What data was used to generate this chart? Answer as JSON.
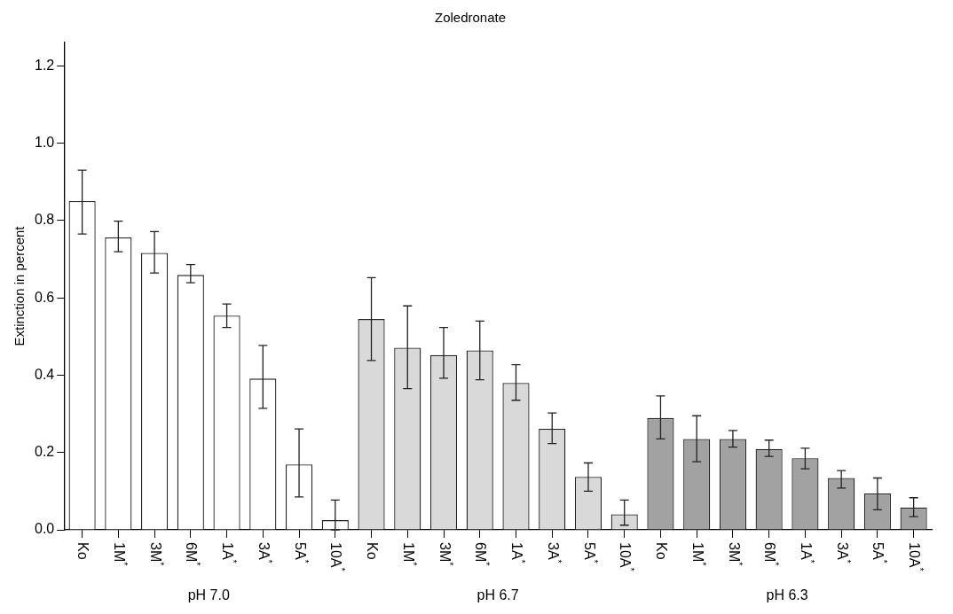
{
  "chart_data": {
    "type": "bar",
    "title": "Zoledronate",
    "ylabel": "Extinction in percent",
    "categories": [
      "Ko",
      "1M$^{*}$",
      "3M$^{*}$",
      "6M$^{*}$",
      "1A$^{*}$",
      "3A$^{*}$",
      "5A$^{*}$",
      "10A$^{*}$",
      "Ko",
      "1M$^{*}$",
      "3M$^{*}$",
      "6M$^{*}$",
      "1A$^{*}$",
      "3A$^{*}$",
      "5A$^{*}$",
      "10A$^{*}$",
      "Ko",
      "1M$^{*}$",
      "3M$^{*}$",
      "6M$^{*}$",
      "1A$^{*}$",
      "3A$^{*}$",
      "5A$^{*}$",
      "10A$^{*}$"
    ],
    "values": [
      0.85,
      0.756,
      0.716,
      0.659,
      0.554,
      0.391,
      0.169,
      0.025,
      0.545,
      0.471,
      0.452,
      0.464,
      0.38,
      0.261,
      0.137,
      0.04,
      0.289,
      0.235,
      0.235,
      0.209,
      0.185,
      0.134,
      0.094,
      0.058
    ],
    "errors": [
      [
        0.765,
        0.93
      ],
      [
        0.719,
        0.798
      ],
      [
        0.664,
        0.771
      ],
      [
        0.639,
        0.686
      ],
      [
        0.523,
        0.584
      ],
      [
        0.314,
        0.477
      ],
      [
        0.085,
        0.261
      ],
      [
        0,
        0.077
      ],
      [
        0.438,
        0.652
      ],
      [
        0.365,
        0.579
      ],
      [
        0.392,
        0.523
      ],
      [
        0.388,
        0.54
      ],
      [
        0.335,
        0.427
      ],
      [
        0.223,
        0.302
      ],
      [
        0.1,
        0.173
      ],
      [
        0.012,
        0.077
      ],
      [
        0.235,
        0.346
      ],
      [
        0.176,
        0.295
      ],
      [
        0.214,
        0.257
      ],
      [
        0.19,
        0.232
      ],
      [
        0.158,
        0.211
      ],
      [
        0.108,
        0.153
      ],
      [
        0.052,
        0.134
      ],
      [
        0.034,
        0.083
      ]
    ],
    "colors": [
      "#ffffff",
      "#ffffff",
      "#ffffff",
      "#ffffff",
      "#ffffff",
      "#ffffff",
      "#ffffff",
      "#ffffff",
      "#d9d9d9",
      "#d9d9d9",
      "#d9d9d9",
      "#d9d9d9",
      "#d9d9d9",
      "#d9d9d9",
      "#d9d9d9",
      "#d9d9d9",
      "#a2a2a2",
      "#a2a2a2",
      "#a2a2a2",
      "#a2a2a2",
      "#a2a2a2",
      "#a2a2a2",
      "#a2a2a2",
      "#a2a2a2"
    ],
    "ylim": [
      0,
      1.26
    ],
    "yticks": [
      {
        "value": 0,
        "label": "0.0"
      },
      {
        "value": 0.2,
        "label": "0.2"
      },
      {
        "value": 0.4,
        "label": "0.4"
      },
      {
        "value": 0.6,
        "label": "0.6"
      },
      {
        "value": 0.8,
        "label": "0.8"
      },
      {
        "value": 1,
        "label": "1.0"
      },
      {
        "value": 1.2,
        "label": "1.2"
      }
    ],
    "annotations": [
      "pH 7.0",
      "pH 6.7",
      "pH 6.3"
    ]
  }
}
